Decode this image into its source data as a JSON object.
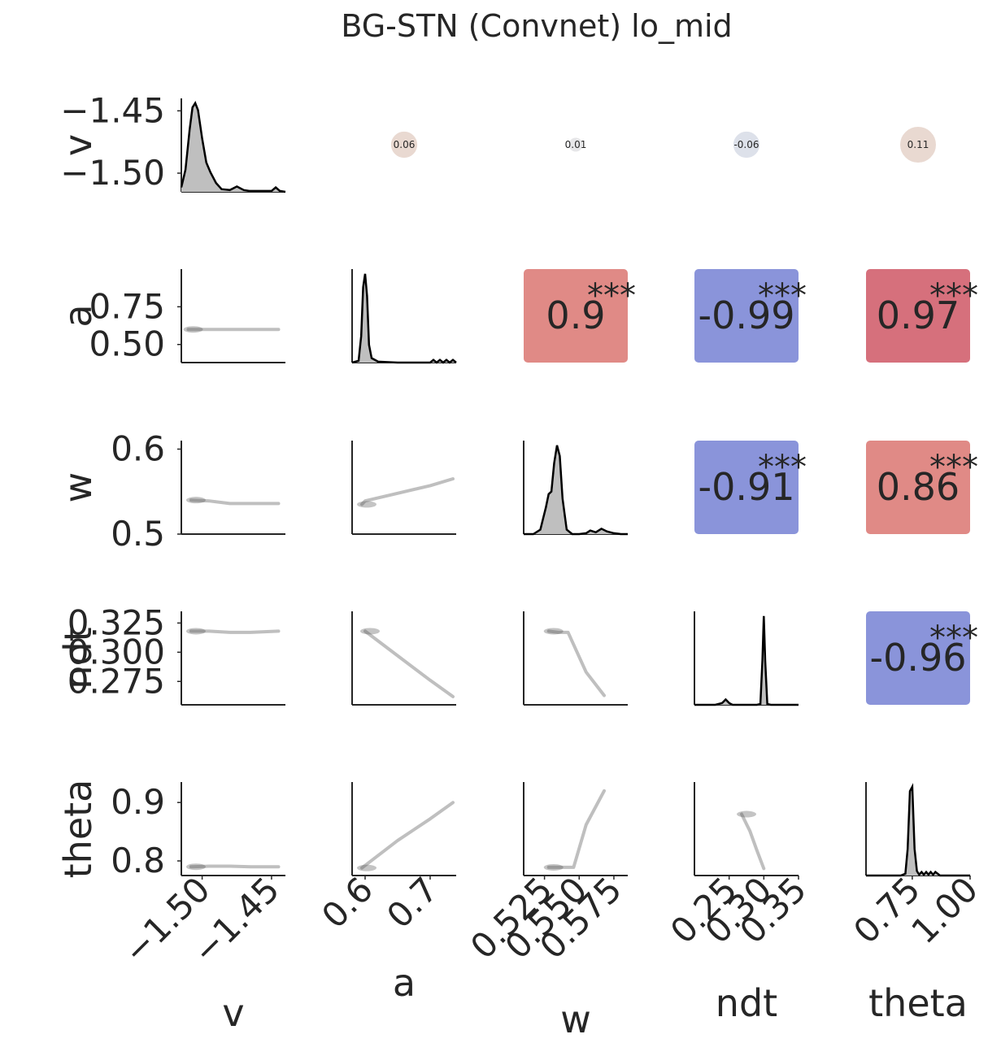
{
  "title": "BG-STN (Convnet)  lo_mid",
  "colors": {
    "axis": "#262626",
    "kde_fill": "#bfbfbf",
    "scatter_line": "#bfbfbf",
    "positive_strong": "#d6707c",
    "positive_mid": "#e08a86",
    "negative": "#8a94da",
    "weak_pos": "#e9d9d1",
    "weak_neg": "#dde1ea",
    "weak_tiny": "#e6e6e8"
  },
  "chart_data": {
    "type": "pairplot",
    "variables": [
      "v",
      "a",
      "w",
      "ndt",
      "theta"
    ],
    "axes": {
      "v": {
        "lim": [
          -1.515,
          -1.44
        ],
        "ticks": [
          -1.5,
          -1.45
        ],
        "ticklabels": [
          "−1.50",
          "−1.45"
        ]
      },
      "a": {
        "lim": [
          0.38,
          1.0
        ],
        "ticks": [
          0.5,
          0.75
        ],
        "ticklabels": [
          "0.50",
          "0.75"
        ],
        "xlim": [
          0.58,
          0.74
        ],
        "xticks": [
          0.6,
          0.7
        ],
        "xticklabels": [
          "0.6",
          "0.7"
        ]
      },
      "w": {
        "lim": [
          0.5,
          0.61
        ],
        "ticks": [
          0.5,
          0.6
        ],
        "ticklabels": [
          "0.5",
          "0.6"
        ],
        "xlim": [
          0.51,
          0.585
        ],
        "xticks": [
          0.525,
          0.55,
          0.575
        ],
        "xticklabels": [
          "0.525",
          "0.550",
          "0.575"
        ]
      },
      "ndt": {
        "lim": [
          0.255,
          0.335
        ],
        "ticks": [
          0.275,
          0.3,
          0.325
        ],
        "ticklabels": [
          "0.275",
          "0.300",
          "0.325"
        ],
        "xlim": [
          0.2,
          0.35
        ],
        "xticks": [
          0.25,
          0.3,
          0.35
        ],
        "xticklabels": [
          "0.25",
          "0.30",
          "0.35"
        ]
      },
      "theta": {
        "lim": [
          0.775,
          0.935
        ],
        "ticks": [
          0.8,
          0.9
        ],
        "ticklabels": [
          "0.8",
          "0.9"
        ],
        "xlim": [
          0.55,
          1.0
        ],
        "xticks": [
          0.75,
          1.0
        ],
        "xticklabels": [
          "0.75",
          "1.00"
        ]
      }
    },
    "diagonal_kde": [
      {
        "var": "v",
        "x": [
          -1.515,
          -1.512,
          -1.509,
          -1.507,
          -1.505,
          -1.503,
          -1.5,
          -1.497,
          -1.494,
          -1.49,
          -1.486,
          -1.48,
          -1.475,
          -1.47,
          -1.466,
          -1.46,
          -1.455,
          -1.45,
          -1.447,
          -1.444,
          -1.44
        ],
        "y": [
          0.05,
          0.25,
          0.7,
          0.95,
          1.0,
          0.92,
          0.6,
          0.33,
          0.22,
          0.1,
          0.03,
          0.02,
          0.06,
          0.02,
          0.01,
          0.01,
          0.01,
          0.01,
          0.05,
          0.01,
          0.0
        ]
      },
      {
        "var": "a",
        "x": [
          0.58,
          0.59,
          0.594,
          0.597,
          0.6,
          0.603,
          0.606,
          0.61,
          0.62,
          0.65,
          0.68,
          0.7,
          0.705,
          0.71,
          0.715,
          0.72,
          0.725,
          0.73,
          0.735,
          0.74
        ],
        "y": [
          0.0,
          0.02,
          0.3,
          0.85,
          1.0,
          0.75,
          0.2,
          0.05,
          0.01,
          0.0,
          0.0,
          0.0,
          0.03,
          0.0,
          0.03,
          0.0,
          0.03,
          0.0,
          0.03,
          0.0
        ]
      },
      {
        "var": "w",
        "x": [
          0.51,
          0.517,
          0.522,
          0.526,
          0.528,
          0.53,
          0.532,
          0.534,
          0.536,
          0.538,
          0.541,
          0.545,
          0.55,
          0.555,
          0.558,
          0.562,
          0.566,
          0.57,
          0.575,
          0.58,
          0.585
        ],
        "y": [
          0.0,
          0.0,
          0.05,
          0.3,
          0.45,
          0.48,
          0.8,
          1.0,
          0.88,
          0.4,
          0.05,
          0.0,
          0.0,
          0.01,
          0.04,
          0.02,
          0.06,
          0.03,
          0.01,
          0.0,
          0.0
        ]
      },
      {
        "var": "ndt",
        "x": [
          0.2,
          0.22,
          0.23,
          0.24,
          0.245,
          0.25,
          0.255,
          0.26,
          0.27,
          0.28,
          0.29,
          0.295,
          0.298,
          0.3,
          0.302,
          0.305,
          0.31,
          0.33,
          0.35
        ],
        "y": [
          0.0,
          0.0,
          0.0,
          0.02,
          0.06,
          0.02,
          0.0,
          0.0,
          0.0,
          0.0,
          0.0,
          0.01,
          0.5,
          1.0,
          0.5,
          0.01,
          0.0,
          0.0,
          0.0
        ]
      },
      {
        "var": "theta",
        "x": [
          0.55,
          0.6,
          0.65,
          0.7,
          0.72,
          0.73,
          0.74,
          0.75,
          0.76,
          0.77,
          0.78,
          0.79,
          0.8,
          0.81,
          0.82,
          0.83,
          0.84,
          0.85,
          0.87,
          0.9,
          1.0
        ],
        "y": [
          0.0,
          0.0,
          0.0,
          0.0,
          0.02,
          0.3,
          0.95,
          1.0,
          0.3,
          0.05,
          0.01,
          0.04,
          0.01,
          0.04,
          0.01,
          0.04,
          0.01,
          0.04,
          0.0,
          0.0,
          0.0
        ]
      }
    ],
    "lower_lines": [
      {
        "row": "a",
        "col": "v",
        "x": [
          -1.51,
          -1.495,
          -1.48,
          -1.465,
          -1.445
        ],
        "y": [
          0.6,
          0.6,
          0.6,
          0.6,
          0.6
        ]
      },
      {
        "row": "w",
        "col": "v",
        "x": [
          -1.508,
          -1.495,
          -1.48,
          -1.465,
          -1.445
        ],
        "y": [
          0.54,
          0.539,
          0.536,
          0.536,
          0.536
        ]
      },
      {
        "row": "w",
        "col": "a",
        "x": [
          0.595,
          0.6,
          0.65,
          0.7,
          0.735
        ],
        "y": [
          0.535,
          0.539,
          0.548,
          0.557,
          0.565
        ]
      },
      {
        "row": "ndt",
        "col": "v",
        "x": [
          -1.508,
          -1.495,
          -1.48,
          -1.465,
          -1.445
        ],
        "y": [
          0.318,
          0.318,
          0.317,
          0.317,
          0.318
        ]
      },
      {
        "row": "ndt",
        "col": "a",
        "x": [
          0.6,
          0.65,
          0.7,
          0.735
        ],
        "y": [
          0.318,
          0.297,
          0.276,
          0.262
        ]
      },
      {
        "row": "ndt",
        "col": "w",
        "x": [
          0.528,
          0.535,
          0.542,
          0.555,
          0.568
        ],
        "y": [
          0.318,
          0.317,
          0.317,
          0.283,
          0.263
        ]
      },
      {
        "row": "theta",
        "col": "v",
        "x": [
          -1.508,
          -1.495,
          -1.48,
          -1.465,
          -1.445
        ],
        "y": [
          0.79,
          0.791,
          0.791,
          0.79,
          0.79
        ]
      },
      {
        "row": "theta",
        "col": "a",
        "x": [
          0.595,
          0.65,
          0.7,
          0.735
        ],
        "y": [
          0.788,
          0.835,
          0.872,
          0.9
        ]
      },
      {
        "row": "theta",
        "col": "w",
        "x": [
          0.528,
          0.54,
          0.546,
          0.555,
          0.568
        ],
        "y": [
          0.789,
          0.789,
          0.789,
          0.862,
          0.92
        ]
      },
      {
        "row": "theta",
        "col": "ndt",
        "x": [
          0.268,
          0.28,
          0.29,
          0.3
        ],
        "y": [
          0.88,
          0.851,
          0.818,
          0.787
        ]
      }
    ],
    "upper_correlations": [
      {
        "row": "v",
        "col": "a",
        "r": "0.06",
        "stars": "",
        "style": "circle",
        "radius": 0.36,
        "color": "weak_pos"
      },
      {
        "row": "v",
        "col": "w",
        "r": "0.01",
        "stars": "",
        "style": "circle",
        "radius": 0.18,
        "color": "weak_tiny"
      },
      {
        "row": "v",
        "col": "ndt",
        "r": "-0.06",
        "stars": "",
        "style": "circle",
        "radius": 0.36,
        "color": "weak_neg"
      },
      {
        "row": "v",
        "col": "theta",
        "r": "0.11",
        "stars": "",
        "style": "circle",
        "radius": 0.5,
        "color": "weak_pos"
      },
      {
        "row": "a",
        "col": "w",
        "r": "0.9",
        "stars": "***",
        "style": "square",
        "color": "positive_mid"
      },
      {
        "row": "a",
        "col": "ndt",
        "r": "-0.99",
        "stars": "***",
        "style": "square",
        "color": "negative"
      },
      {
        "row": "a",
        "col": "theta",
        "r": "0.97",
        "stars": "***",
        "style": "square",
        "color": "positive_strong"
      },
      {
        "row": "w",
        "col": "ndt",
        "r": "-0.91",
        "stars": "***",
        "style": "square",
        "color": "negative"
      },
      {
        "row": "w",
        "col": "theta",
        "r": "0.86",
        "stars": "***",
        "style": "square",
        "color": "positive_mid"
      },
      {
        "row": "ndt",
        "col": "theta",
        "r": "-0.96",
        "stars": "***",
        "style": "square",
        "color": "negative"
      }
    ],
    "grid": false
  }
}
